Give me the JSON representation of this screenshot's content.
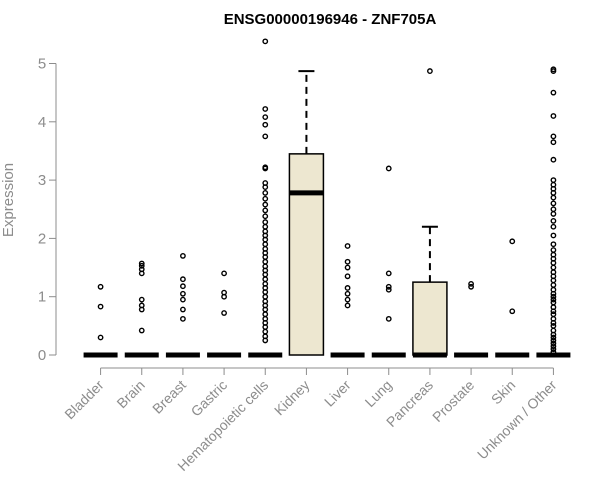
{
  "chart_data": {
    "type": "boxplot",
    "title": "ENSG00000196946 - ZNF705A",
    "xlabel": "",
    "ylabel": "Expression",
    "ylim": [
      0,
      5
    ],
    "yticks": [
      0,
      1,
      2,
      3,
      4,
      5
    ],
    "categories": [
      "Bladder",
      "Brain",
      "Breast",
      "Gastric",
      "Hematopoietic cells",
      "Kidney",
      "Liver",
      "Lung",
      "Pancreas",
      "Prostate",
      "Skin",
      "Unknown / Other"
    ],
    "box_fill": "#ede7d0",
    "boxes": [
      {
        "q1": 0,
        "median": 0,
        "q3": 0,
        "whisker_low": 0,
        "whisker_high": 0,
        "outliers": [
          0.3,
          0.83,
          1.17
        ]
      },
      {
        "q1": 0,
        "median": 0,
        "q3": 0,
        "whisker_low": 0,
        "whisker_high": 0,
        "outliers": [
          0.42,
          0.78,
          0.85,
          0.95,
          1.4,
          1.47,
          1.53,
          1.57
        ]
      },
      {
        "q1": 0,
        "median": 0,
        "q3": 0,
        "whisker_low": 0,
        "whisker_high": 0,
        "outliers": [
          0.62,
          0.78,
          0.95,
          1.05,
          1.18,
          1.3,
          1.7
        ]
      },
      {
        "q1": 0,
        "median": 0,
        "q3": 0,
        "whisker_low": 0,
        "whisker_high": 0,
        "outliers": [
          0.72,
          1.0,
          1.07,
          1.4
        ]
      },
      {
        "q1": 0,
        "median": 0,
        "q3": 0,
        "whisker_low": 0,
        "whisker_high": 0,
        "outliers": [
          0.25,
          0.32,
          0.4,
          0.48,
          0.55,
          0.62,
          0.7,
          0.78,
          0.85,
          0.92,
          1.0,
          1.08,
          1.15,
          1.22,
          1.3,
          1.38,
          1.45,
          1.52,
          1.6,
          1.68,
          1.75,
          1.82,
          1.9,
          1.98,
          2.05,
          2.12,
          2.2,
          2.28,
          2.38,
          2.48,
          2.58,
          2.68,
          2.78,
          2.88,
          2.95,
          3.2,
          3.22,
          3.75,
          3.95,
          4.08,
          4.22,
          5.38
        ]
      },
      {
        "q1": 0,
        "median": 2.78,
        "q3": 3.45,
        "whisker_low": 0,
        "whisker_high": 4.87,
        "outliers": []
      },
      {
        "q1": 0,
        "median": 0,
        "q3": 0,
        "whisker_low": 0,
        "whisker_high": 0,
        "outliers": [
          0.85,
          0.95,
          1.05,
          1.15,
          1.35,
          1.5,
          1.6,
          1.87
        ]
      },
      {
        "q1": 0,
        "median": 0,
        "q3": 0,
        "whisker_low": 0,
        "whisker_high": 0,
        "outliers": [
          0.62,
          1.12,
          1.17,
          1.4,
          3.2
        ]
      },
      {
        "q1": 0,
        "median": 0,
        "q3": 1.25,
        "whisker_low": 0,
        "whisker_high": 2.2,
        "outliers": [
          4.87
        ]
      },
      {
        "q1": 0,
        "median": 0,
        "q3": 0,
        "whisker_low": 0,
        "whisker_high": 0,
        "outliers": [
          1.17,
          1.22
        ]
      },
      {
        "q1": 0,
        "median": 0,
        "q3": 0,
        "whisker_low": 0,
        "whisker_high": 0,
        "outliers": [
          0.75,
          1.95
        ]
      },
      {
        "q1": 0,
        "median": 0,
        "q3": 0,
        "whisker_low": 0,
        "whisker_high": 0,
        "outliers": [
          0.05,
          0.1,
          0.15,
          0.2,
          0.25,
          0.3,
          0.35,
          0.42,
          0.5,
          0.55,
          0.62,
          0.7,
          0.75,
          0.82,
          0.9,
          0.95,
          1.0,
          1.05,
          1.12,
          1.2,
          1.28,
          1.35,
          1.42,
          1.5,
          1.58,
          1.65,
          1.72,
          1.8,
          1.9,
          2.05,
          2.2,
          2.3,
          2.42,
          2.5,
          2.6,
          2.7,
          2.78,
          2.85,
          2.92,
          3.0,
          3.35,
          3.65,
          3.75,
          4.1,
          4.5,
          4.87,
          4.9
        ]
      }
    ]
  }
}
